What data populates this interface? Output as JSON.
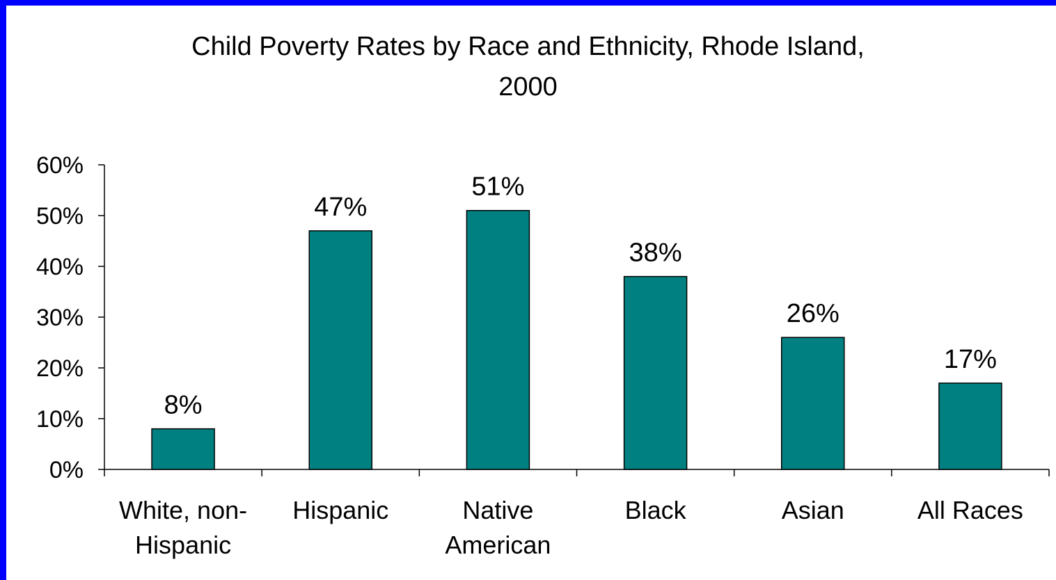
{
  "colors": {
    "border": "#0000ff",
    "background": "#ffffff",
    "bar": "#008080"
  },
  "chart_data": {
    "type": "bar",
    "title": "Child Poverty Rates by Race and Ethnicity, Rhode Island,\n2000",
    "xlabel": "",
    "ylabel": "",
    "ylim": [
      0,
      60
    ],
    "y_ticks": [
      "0%",
      "10%",
      "20%",
      "30%",
      "40%",
      "50%",
      "60%"
    ],
    "categories": [
      [
        "White, non-",
        "Hispanic"
      ],
      [
        "Hispanic"
      ],
      [
        "Native",
        "American"
      ],
      [
        "Black"
      ],
      [
        "Asian"
      ],
      [
        "All Races"
      ]
    ],
    "values": [
      8,
      47,
      51,
      38,
      26,
      17
    ],
    "data_labels": [
      "8%",
      "47%",
      "51%",
      "38%",
      "26%",
      "17%"
    ],
    "grid": false,
    "legend": "none"
  }
}
